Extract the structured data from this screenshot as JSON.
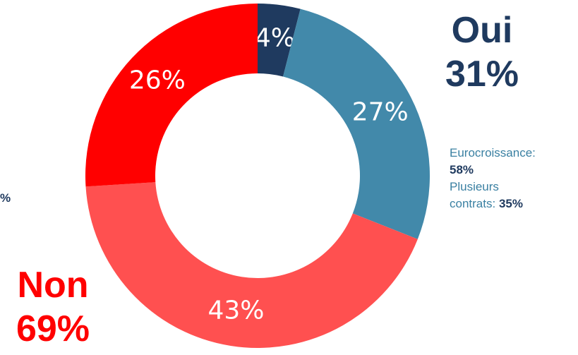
{
  "chart_data": {
    "type": "pie",
    "subtype": "donut",
    "slices": [
      {
        "label": "4%",
        "value": 4,
        "color": "#1f3a5f"
      },
      {
        "label": "27%",
        "value": 27,
        "color": "#4289aa"
      },
      {
        "label": "43%",
        "value": 43,
        "color": "#ff5050"
      },
      {
        "label": "26%",
        "value": 26,
        "color": "#ff0000"
      }
    ]
  },
  "groups": {
    "oui": {
      "label": "Oui",
      "value": "31%",
      "color": "#1f3a5f"
    },
    "non": {
      "label": "Non",
      "value": "69%",
      "color": "#ff0000"
    }
  },
  "notes": {
    "eurocroissance_label": "Eurocroissance:",
    "eurocroissance_value": "58%",
    "plusieurs_label_line1": "Plusieurs",
    "plusieurs_label_line2": "contrats:",
    "plusieurs_value": "35%"
  },
  "left_stub": "%"
}
